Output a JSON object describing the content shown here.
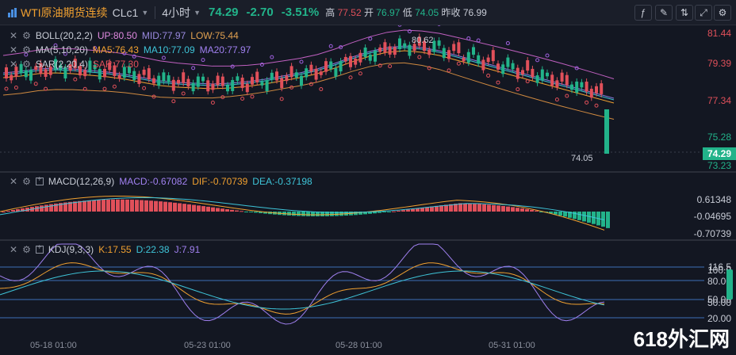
{
  "header": {
    "title": "WTI原油期货连续",
    "symbol": "CLc1",
    "period": "4小时",
    "price": "74.29",
    "change": "-2.70",
    "change_pct": "-3.51%",
    "high_label": "高",
    "high": "77.52",
    "open_label": "开",
    "open": "76.97",
    "low_label": "低",
    "low": "74.05",
    "prev_label": "昨收",
    "prev": "76.99"
  },
  "main": {
    "boll": {
      "name": "BOLL(20,2,2)",
      "up": "UP:80.50",
      "mid": "MID:77.97",
      "low": "LOW:75.44"
    },
    "ma": {
      "name": "MA(5,10,20)",
      "ma5": "MA5:76.43",
      "ma10": "MA10:77.09",
      "ma20": "MA20:77.97"
    },
    "sar": {
      "name": "SAR(2,20,4)",
      "val": "SAR:77.30"
    },
    "axis": [
      "81.44",
      "79.39",
      "77.34",
      "75.28",
      "73.23"
    ],
    "last_price_tag": "74.29",
    "high_marker": "80.62",
    "low_marker": "74.05"
  },
  "macd": {
    "name": "MACD(12,26,9)",
    "macd": "MACD:-0.67082",
    "dif": "DIF:-0.70739",
    "dea": "DEA:-0.37198",
    "axis": [
      "0.61348",
      "-0.04695",
      "-0.70739"
    ]
  },
  "kdj": {
    "name": "KDJ(9,3,3)",
    "k": "K:17.55",
    "d": "D:22.38",
    "j": "J:7.91",
    "axis_a": [
      "116.5",
      "80.00",
      "50.00",
      "20.00"
    ],
    "axis_b": [
      "100.0",
      "50.00"
    ]
  },
  "xaxis": [
    "05-18 01:00",
    "05-23 01:00",
    "05-28 01:00",
    "05-31 01:00"
  ],
  "watermark": "618外汇网",
  "colors": {
    "up": "#e0505a",
    "down": "#22b38a",
    "accent": "#f0a030"
  },
  "icons": [
    "close-icon",
    "gear-icon",
    "eye-icon",
    "compare-icon",
    "indicator-icon",
    "draw-icon",
    "expand-icon",
    "settings-icon"
  ]
}
